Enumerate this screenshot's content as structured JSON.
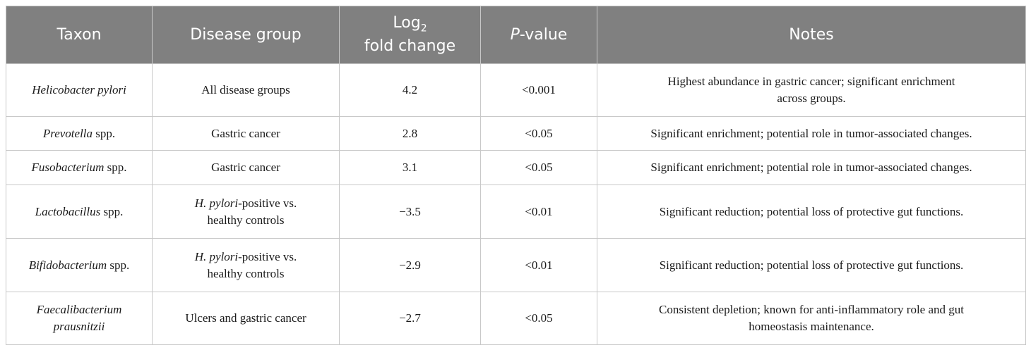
{
  "table": {
    "header": [
      [
        {
          "text": "Taxon"
        }
      ],
      [
        {
          "text": "Disease group"
        }
      ],
      [
        {
          "text": "Log"
        },
        {
          "text": "2",
          "sub": true
        },
        {
          "text": "fold change",
          "break_before": true
        }
      ],
      [
        {
          "text": "P",
          "italic": true
        },
        {
          "text": "-value"
        }
      ],
      [
        {
          "text": "Notes"
        }
      ]
    ],
    "rows": [
      [
        [
          {
            "text": "Helicobacter pylori",
            "italic": true
          }
        ],
        [
          {
            "text": "All disease groups"
          }
        ],
        [
          {
            "text": "4.2"
          }
        ],
        [
          {
            "text": "<0.001"
          }
        ],
        [
          {
            "text": "Highest abundance in gastric cancer; significant enrichment"
          },
          {
            "text": "across groups.",
            "break_before": true
          }
        ]
      ],
      [
        [
          {
            "text": "Prevotella",
            "italic": true
          },
          {
            "text": " spp."
          }
        ],
        [
          {
            "text": "Gastric cancer"
          }
        ],
        [
          {
            "text": "2.8"
          }
        ],
        [
          {
            "text": "<0.05"
          }
        ],
        [
          {
            "text": "Significant enrichment; potential role in tumor-associated changes."
          }
        ]
      ],
      [
        [
          {
            "text": "Fusobacterium",
            "italic": true
          },
          {
            "text": " spp."
          }
        ],
        [
          {
            "text": "Gastric cancer"
          }
        ],
        [
          {
            "text": "3.1"
          }
        ],
        [
          {
            "text": "<0.05"
          }
        ],
        [
          {
            "text": "Significant enrichment; potential role in tumor-associated changes."
          }
        ]
      ],
      [
        [
          {
            "text": "Lactobacillus",
            "italic": true
          },
          {
            "text": " spp."
          }
        ],
        [
          {
            "text": "H. pylori",
            "italic": true
          },
          {
            "text": "-positive vs."
          },
          {
            "text": "healthy controls",
            "break_before": true
          }
        ],
        [
          {
            "text": "−3.5"
          }
        ],
        [
          {
            "text": "<0.01"
          }
        ],
        [
          {
            "text": "Significant reduction; potential loss of protective gut functions."
          }
        ]
      ],
      [
        [
          {
            "text": "Bifidobacterium",
            "italic": true
          },
          {
            "text": " spp."
          }
        ],
        [
          {
            "text": "H. pylori",
            "italic": true
          },
          {
            "text": "-positive vs."
          },
          {
            "text": "healthy controls",
            "break_before": true
          }
        ],
        [
          {
            "text": "−2.9"
          }
        ],
        [
          {
            "text": "<0.01"
          }
        ],
        [
          {
            "text": "Significant reduction; potential loss of protective gut functions."
          }
        ]
      ],
      [
        [
          {
            "text": "Faecalibacterium",
            "italic": true
          },
          {
            "text": "prausnitzii",
            "italic": true,
            "break_before": true
          }
        ],
        [
          {
            "text": "Ulcers and gastric cancer"
          }
        ],
        [
          {
            "text": "−2.7"
          }
        ],
        [
          {
            "text": "<0.05"
          }
        ],
        [
          {
            "text": "Consistent depletion; known for anti-inflammatory role and gut"
          },
          {
            "text": "homeostasis maintenance.",
            "break_before": true
          }
        ]
      ]
    ]
  }
}
